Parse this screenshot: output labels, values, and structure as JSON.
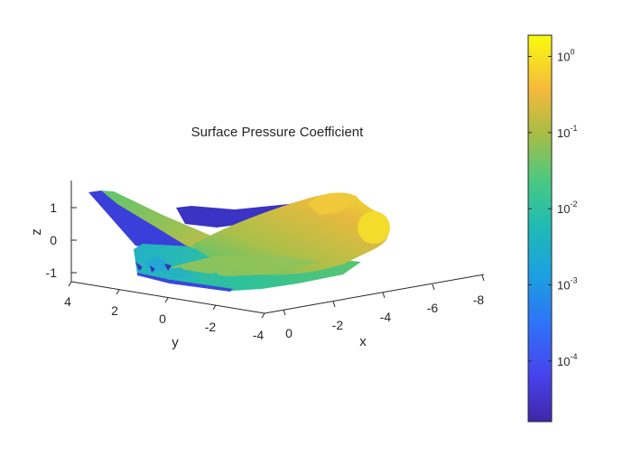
{
  "chart_data": {
    "type": "surface3d",
    "title": "Surface Pressure Coefficient",
    "xlabel": "x",
    "ylabel": "y",
    "zlabel": "z",
    "x_ticks": [
      "0",
      "-2",
      "-4",
      "-6",
      "-8"
    ],
    "y_ticks": [
      "4",
      "2",
      "0",
      "-2",
      "-4"
    ],
    "z_ticks": [
      "1",
      "0",
      "-1"
    ],
    "colorbar": {
      "scale": "log",
      "colormap": "parula",
      "range": [
        1.6e-05,
        1.9
      ],
      "ticks": [
        {
          "base": "10",
          "exp": "0"
        },
        {
          "base": "10",
          "exp": "-1"
        },
        {
          "base": "10",
          "exp": "-2"
        },
        {
          "base": "10",
          "exp": "-3"
        },
        {
          "base": "10",
          "exp": "-4"
        }
      ]
    },
    "colors": {
      "parula_low": "#3e26a8",
      "parula_mid": "#1fbfb8",
      "parula_high": "#f9fb0e"
    }
  }
}
